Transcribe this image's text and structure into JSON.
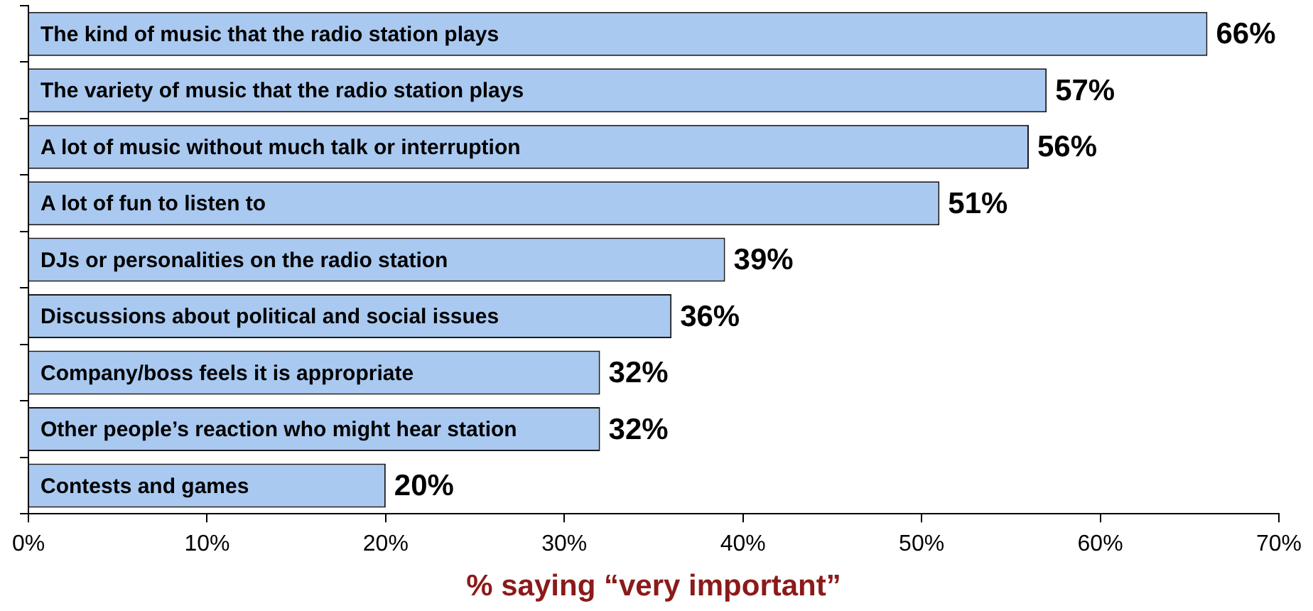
{
  "chart_data": {
    "type": "bar",
    "orientation": "horizontal",
    "xlabel": "% saying “very important”",
    "categories": [
      "The kind of music that the radio station plays",
      "The variety of music that the radio station plays",
      "A lot of music without much talk or interruption",
      "A lot of fun to listen to",
      "DJs or personalities on the radio station",
      "Discussions about political and social issues",
      "Company/boss feels it is appropriate",
      "Other people’s reaction who might hear station",
      "Contests and games"
    ],
    "values": [
      66,
      57,
      56,
      51,
      39,
      36,
      32,
      32,
      20
    ],
    "value_labels": [
      "66%",
      "57%",
      "56%",
      "51%",
      "39%",
      "36%",
      "32%",
      "32%",
      "20%"
    ],
    "color": "#a9c9f0",
    "xlim": [
      0,
      70
    ],
    "xticks": [
      {
        "value": 0,
        "label": "0%"
      },
      {
        "value": 10,
        "label": "10%"
      },
      {
        "value": 20,
        "label": "20%"
      },
      {
        "value": 30,
        "label": "30%"
      },
      {
        "value": 40,
        "label": "40%"
      },
      {
        "value": 50,
        "label": "50%"
      },
      {
        "value": 60,
        "label": "60%"
      },
      {
        "value": 70,
        "label": "70%"
      }
    ],
    "grid": false,
    "legend": false
  }
}
